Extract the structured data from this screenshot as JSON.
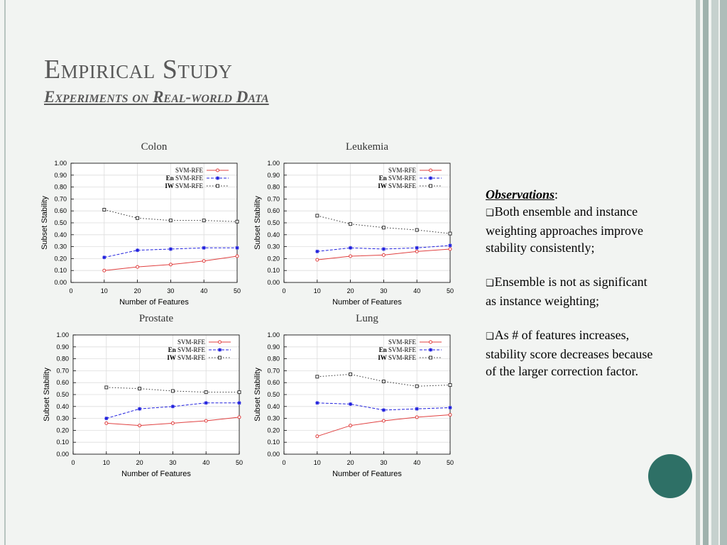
{
  "slide": {
    "title": "Empirical Study",
    "subtitle": "Experiments on Real-world Data"
  },
  "observations": {
    "heading": "Observations",
    "heading_suffix": ":",
    "bullet_icon": "checkbox-bullet-icon",
    "bullets": [
      "Both ensemble and instance weighting approaches improve stability consistently;",
      "Ensemble is not as significant as instance weighting;",
      "As # of features increases, stability score decreases because of the larger correction factor."
    ]
  },
  "colors": {
    "svm_rfe": "#e04040",
    "en_svm_rfe": "#2020dd",
    "iw_svm_rfe": "#333333",
    "accent_circle": "#2e7066"
  },
  "chart_data": [
    {
      "type": "line",
      "title": "Colon",
      "xlabel": "Number of Features",
      "ylabel": "Subset Stability",
      "xlim": [
        0,
        50
      ],
      "ylim": [
        0,
        1
      ],
      "xticks": [
        "0",
        "10",
        "20",
        "30",
        "40",
        "50"
      ],
      "yticks": [
        "0.00",
        "0.10",
        "0.20",
        "0.30",
        "0.40",
        "0.50",
        "0.60",
        "0.70",
        "0.80",
        "0.90",
        "1.00"
      ],
      "legend": "top-right",
      "x": [
        10,
        20,
        30,
        40,
        50
      ],
      "series": [
        {
          "name": "SVM-RFE",
          "prefix": "",
          "values": [
            0.1,
            0.13,
            0.15,
            0.18,
            0.22
          ]
        },
        {
          "name": "SVM-RFE",
          "prefix": "En",
          "values": [
            0.21,
            0.27,
            0.28,
            0.29,
            0.29
          ]
        },
        {
          "name": "SVM-RFE",
          "prefix": "IW",
          "values": [
            0.61,
            0.54,
            0.52,
            0.52,
            0.51
          ]
        }
      ]
    },
    {
      "type": "line",
      "title": "Leukemia",
      "xlabel": "Number of Features",
      "ylabel": "Subset Stability",
      "xlim": [
        0,
        50
      ],
      "ylim": [
        0,
        1
      ],
      "xticks": [
        "0",
        "10",
        "20",
        "30",
        "40",
        "50"
      ],
      "yticks": [
        "0.00",
        "0.10",
        "0.20",
        "0.30",
        "0.40",
        "0.50",
        "0.60",
        "0.70",
        "0.80",
        "0.90",
        "1.00"
      ],
      "legend": "top-right",
      "x": [
        10,
        20,
        30,
        40,
        50
      ],
      "series": [
        {
          "name": "SVM-RFE",
          "prefix": "",
          "values": [
            0.19,
            0.22,
            0.23,
            0.26,
            0.28
          ]
        },
        {
          "name": "SVM-RFE",
          "prefix": "En",
          "values": [
            0.26,
            0.29,
            0.28,
            0.29,
            0.31
          ]
        },
        {
          "name": "SVM-RFE",
          "prefix": "IW",
          "values": [
            0.56,
            0.49,
            0.46,
            0.44,
            0.41
          ]
        }
      ]
    },
    {
      "type": "line",
      "title": "Prostate",
      "xlabel": "Number of Features",
      "ylabel": "Subset Stability",
      "xlim": [
        0,
        50
      ],
      "ylim": [
        0,
        1
      ],
      "xticks": [
        "0",
        "10",
        "20",
        "30",
        "40",
        "50"
      ],
      "yticks": [
        "0.00",
        "0.10",
        "0.20",
        "0.30",
        "0.40",
        "0.50",
        "0.60",
        "0.70",
        "0.80",
        "0.90",
        "1.00"
      ],
      "legend": "top-right",
      "x": [
        10,
        20,
        30,
        40,
        50
      ],
      "series": [
        {
          "name": "SVM-RFE",
          "prefix": "",
          "values": [
            0.26,
            0.24,
            0.26,
            0.28,
            0.31
          ]
        },
        {
          "name": "SVM-RFE",
          "prefix": "En",
          "values": [
            0.3,
            0.38,
            0.4,
            0.43,
            0.43
          ]
        },
        {
          "name": "SVM-RFE",
          "prefix": "IW",
          "values": [
            0.56,
            0.55,
            0.53,
            0.52,
            0.52
          ]
        }
      ]
    },
    {
      "type": "line",
      "title": "Lung",
      "xlabel": "Number of Features",
      "ylabel": "Subset Stability",
      "xlim": [
        0,
        50
      ],
      "ylim": [
        0,
        1
      ],
      "xticks": [
        "0",
        "10",
        "20",
        "30",
        "40",
        "50"
      ],
      "yticks": [
        "0.00",
        "0.10",
        "0.20",
        "0.30",
        "0.40",
        "0.50",
        "0.60",
        "0.70",
        "0.80",
        "0.90",
        "1.00"
      ],
      "legend": "top-right",
      "x": [
        10,
        20,
        30,
        40,
        50
      ],
      "series": [
        {
          "name": "SVM-RFE",
          "prefix": "",
          "values": [
            0.15,
            0.24,
            0.28,
            0.31,
            0.33
          ]
        },
        {
          "name": "SVM-RFE",
          "prefix": "En",
          "values": [
            0.43,
            0.42,
            0.37,
            0.38,
            0.39
          ]
        },
        {
          "name": "SVM-RFE",
          "prefix": "IW",
          "values": [
            0.65,
            0.67,
            0.61,
            0.57,
            0.58
          ]
        }
      ]
    }
  ]
}
